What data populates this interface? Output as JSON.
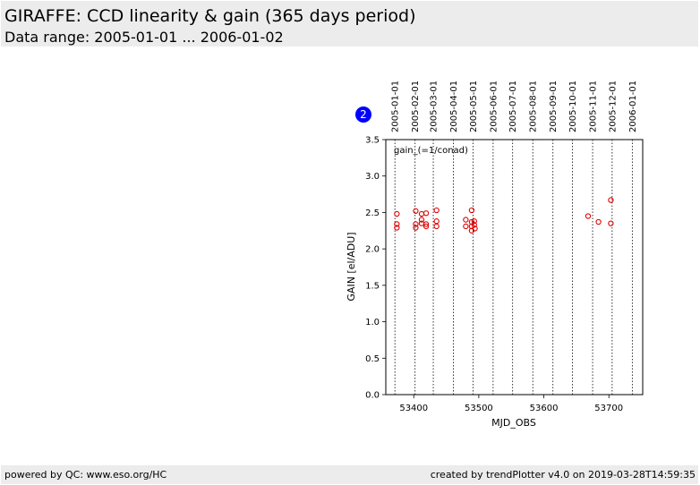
{
  "header": {
    "title": "GIRAFFE: CCD linearity & gain (365 days period)",
    "subtitle": "Data range: 2005-01-01 ... 2006-01-02"
  },
  "badge": {
    "label": "2"
  },
  "footer": {
    "left": "powered by QC: www.eso.org/HC",
    "right": "created by trendPlotter v4.0 on 2019-03-28T14:59:35"
  },
  "colors": {
    "marker": "#dd0000",
    "badge": "#0000ff",
    "band": "#ececec"
  },
  "chart_data": {
    "type": "scatter",
    "annotation": "gain_(=1/conad)",
    "xlabel": "MJD_OBS",
    "ylabel": "GAIN [el/ADU]",
    "xlim": [
      53357,
      53752
    ],
    "ylim": [
      0.0,
      3.5
    ],
    "xticks": [
      53400,
      53500,
      53600,
      53700
    ],
    "yticks": [
      0.0,
      0.5,
      1.0,
      1.5,
      2.0,
      2.5,
      3.0,
      3.5
    ],
    "date_lines": [
      {
        "label": "2005-01-01",
        "mjd": 53371
      },
      {
        "label": "2005-02-01",
        "mjd": 53402
      },
      {
        "label": "2005-03-01",
        "mjd": 53430
      },
      {
        "label": "2005-04-01",
        "mjd": 53461
      },
      {
        "label": "2005-05-01",
        "mjd": 53491
      },
      {
        "label": "2005-06-01",
        "mjd": 53522
      },
      {
        "label": "2005-07-01",
        "mjd": 53552
      },
      {
        "label": "2005-08-01",
        "mjd": 53583
      },
      {
        "label": "2005-09-01",
        "mjd": 53614
      },
      {
        "label": "2005-10-01",
        "mjd": 53644
      },
      {
        "label": "2005-11-01",
        "mjd": 53675
      },
      {
        "label": "2005-12-01",
        "mjd": 53705
      },
      {
        "label": "2006-01-01",
        "mjd": 53736
      }
    ],
    "points": [
      {
        "x": 53374,
        "y": 2.48
      },
      {
        "x": 53374,
        "y": 2.34
      },
      {
        "x": 53374,
        "y": 2.29
      },
      {
        "x": 53403,
        "y": 2.52
      },
      {
        "x": 53403,
        "y": 2.34
      },
      {
        "x": 53403,
        "y": 2.29
      },
      {
        "x": 53412,
        "y": 2.48
      },
      {
        "x": 53412,
        "y": 2.4
      },
      {
        "x": 53412,
        "y": 2.35
      },
      {
        "x": 53419,
        "y": 2.49
      },
      {
        "x": 53419,
        "y": 2.34
      },
      {
        "x": 53419,
        "y": 2.31
      },
      {
        "x": 53435,
        "y": 2.53
      },
      {
        "x": 53435,
        "y": 2.38
      },
      {
        "x": 53435,
        "y": 2.31
      },
      {
        "x": 53480,
        "y": 2.4
      },
      {
        "x": 53480,
        "y": 2.31
      },
      {
        "x": 53489,
        "y": 2.53
      },
      {
        "x": 53489,
        "y": 2.37
      },
      {
        "x": 53489,
        "y": 2.31
      },
      {
        "x": 53489,
        "y": 2.25
      },
      {
        "x": 53493,
        "y": 2.38
      },
      {
        "x": 53493,
        "y": 2.33
      },
      {
        "x": 53494,
        "y": 2.28
      },
      {
        "x": 53668,
        "y": 2.45
      },
      {
        "x": 53684,
        "y": 2.37
      },
      {
        "x": 53703,
        "y": 2.67
      },
      {
        "x": 53703,
        "y": 2.35
      }
    ]
  }
}
